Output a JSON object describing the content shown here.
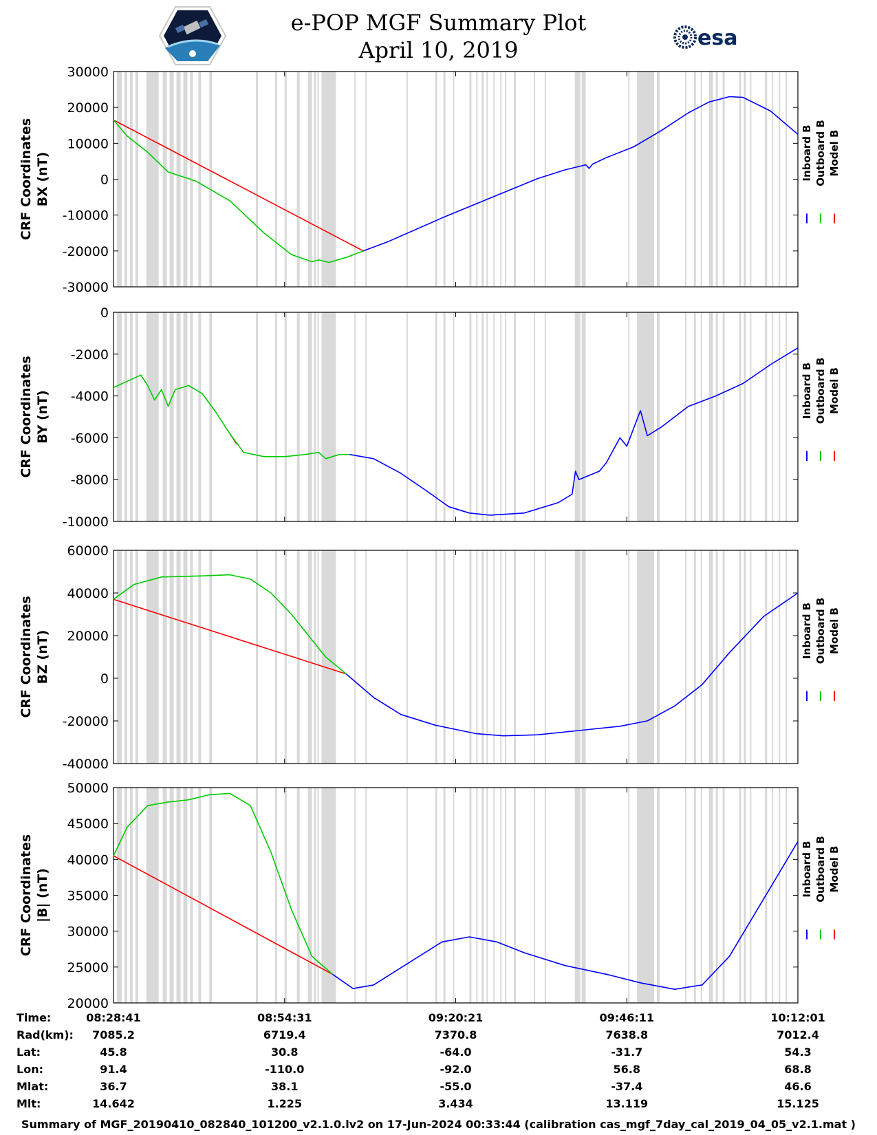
{
  "title_line1": "e-POP MGF Summary Plot",
  "title_line2": "April 10, 2019",
  "logos": {
    "left_icon": "cassiope-satellite-logo",
    "right_text": "esa"
  },
  "legend": [
    {
      "label": "Inboard B",
      "color": "#0000ff"
    },
    {
      "label": "Outboard B",
      "color": "#00cc00"
    },
    {
      "label": "Model B",
      "color": "#ff0000"
    }
  ],
  "chart_data": [
    {
      "type": "line",
      "ylabel1": "CRF Coordinates",
      "ylabel2": "BX (nT)",
      "ylim": [
        -30000,
        30000
      ],
      "yticks": [
        -30000,
        -20000,
        -10000,
        0,
        10000,
        20000,
        30000
      ],
      "ytick_labels": [
        "-30000",
        "-20000",
        "-10000",
        "0",
        "10000",
        "20000",
        "30000"
      ],
      "outboard": [
        [
          0,
          16500
        ],
        [
          0.02,
          12000
        ],
        [
          0.05,
          7500
        ],
        [
          0.08,
          2000
        ],
        [
          0.12,
          -500
        ],
        [
          0.17,
          -6000
        ],
        [
          0.22,
          -15000
        ],
        [
          0.26,
          -21000
        ],
        [
          0.29,
          -23000
        ],
        [
          0.3,
          -22500
        ],
        [
          0.315,
          -23200
        ],
        [
          0.34,
          -21800
        ],
        [
          0.365,
          -20000
        ]
      ],
      "inboard": [
        [
          0.365,
          -20000
        ],
        [
          0.4,
          -17500
        ],
        [
          0.48,
          -10800
        ],
        [
          0.56,
          -4500
        ],
        [
          0.62,
          200
        ],
        [
          0.66,
          2600
        ],
        [
          0.69,
          4000
        ],
        [
          0.695,
          3000
        ],
        [
          0.7,
          4200
        ],
        [
          0.72,
          6000
        ],
        [
          0.76,
          9000
        ],
        [
          0.8,
          13500
        ],
        [
          0.84,
          18500
        ],
        [
          0.87,
          21500
        ],
        [
          0.9,
          23000
        ],
        [
          0.92,
          22800
        ],
        [
          0.96,
          19000
        ],
        [
          1.0,
          12500
        ]
      ],
      "model": [
        [
          0,
          16500
        ],
        [
          0.365,
          -20000
        ]
      ]
    },
    {
      "type": "line",
      "ylabel1": "CRF Coordinates",
      "ylabel2": "BY (nT)",
      "ylim": [
        -10000,
        0
      ],
      "yticks": [
        -10000,
        -8000,
        -6000,
        -4000,
        -2000,
        0
      ],
      "ytick_labels": [
        "-10000",
        "-8000",
        "-6000",
        "-4000",
        "-2000",
        "0"
      ],
      "outboard": [
        [
          0,
          -3600
        ],
        [
          0.02,
          -3300
        ],
        [
          0.04,
          -3000
        ],
        [
          0.05,
          -3500
        ],
        [
          0.06,
          -4200
        ],
        [
          0.07,
          -3700
        ],
        [
          0.08,
          -4500
        ],
        [
          0.09,
          -3700
        ],
        [
          0.1,
          -3600
        ],
        [
          0.11,
          -3500
        ],
        [
          0.13,
          -3900
        ],
        [
          0.15,
          -4800
        ],
        [
          0.17,
          -5800
        ],
        [
          0.19,
          -6700
        ],
        [
          0.22,
          -6900
        ],
        [
          0.25,
          -6900
        ],
        [
          0.28,
          -6800
        ],
        [
          0.3,
          -6700
        ],
        [
          0.31,
          -7000
        ],
        [
          0.33,
          -6800
        ],
        [
          0.345,
          -6800
        ]
      ],
      "inboard": [
        [
          0.345,
          -6800
        ],
        [
          0.38,
          -7000
        ],
        [
          0.42,
          -7700
        ],
        [
          0.46,
          -8600
        ],
        [
          0.49,
          -9300
        ],
        [
          0.52,
          -9600
        ],
        [
          0.55,
          -9700
        ],
        [
          0.6,
          -9600
        ],
        [
          0.65,
          -9100
        ],
        [
          0.67,
          -8700
        ],
        [
          0.675,
          -7600
        ],
        [
          0.68,
          -8000
        ],
        [
          0.71,
          -7600
        ],
        [
          0.72,
          -7200
        ],
        [
          0.74,
          -6000
        ],
        [
          0.75,
          -6400
        ],
        [
          0.77,
          -4700
        ],
        [
          0.78,
          -5900
        ],
        [
          0.8,
          -5500
        ],
        [
          0.84,
          -4500
        ],
        [
          0.88,
          -4000
        ],
        [
          0.92,
          -3400
        ],
        [
          0.96,
          -2500
        ],
        [
          1.0,
          -1700
        ]
      ],
      "model": [
        [
          0.17,
          -5800
        ],
        [
          0.18,
          -6300
        ]
      ]
    },
    {
      "type": "line",
      "ylabel1": "CRF Coordinates",
      "ylabel2": "BZ (nT)",
      "ylim": [
        -40000,
        60000
      ],
      "yticks": [
        -40000,
        -20000,
        0,
        20000,
        40000,
        60000
      ],
      "ytick_labels": [
        "-40000",
        "-20000",
        "0",
        "20000",
        "40000",
        "60000"
      ],
      "outboard": [
        [
          0,
          37000
        ],
        [
          0.03,
          44000
        ],
        [
          0.07,
          47500
        ],
        [
          0.13,
          48000
        ],
        [
          0.17,
          48500
        ],
        [
          0.2,
          46500
        ],
        [
          0.23,
          40000
        ],
        [
          0.26,
          30000
        ],
        [
          0.29,
          18000
        ],
        [
          0.31,
          10000
        ],
        [
          0.34,
          2000
        ]
      ],
      "inboard": [
        [
          0.34,
          2000
        ],
        [
          0.38,
          -9000
        ],
        [
          0.42,
          -17000
        ],
        [
          0.47,
          -22000
        ],
        [
          0.53,
          -26000
        ],
        [
          0.57,
          -27000
        ],
        [
          0.62,
          -26500
        ],
        [
          0.68,
          -24500
        ],
        [
          0.74,
          -22500
        ],
        [
          0.78,
          -20000
        ],
        [
          0.82,
          -13000
        ],
        [
          0.86,
          -3000
        ],
        [
          0.9,
          12000
        ],
        [
          0.95,
          29000
        ],
        [
          1.0,
          40000
        ]
      ],
      "model": [
        [
          0,
          37000
        ],
        [
          0.34,
          2000
        ]
      ]
    },
    {
      "type": "line",
      "ylabel1": "CRF Coordinates",
      "ylabel2": "|B| (nT)",
      "ylim": [
        20000,
        50000
      ],
      "yticks": [
        20000,
        25000,
        30000,
        35000,
        40000,
        45000,
        50000
      ],
      "ytick_labels": [
        "20000",
        "25000",
        "30000",
        "35000",
        "40000",
        "45000",
        "50000"
      ],
      "outboard": [
        [
          0,
          40500
        ],
        [
          0.02,
          44500
        ],
        [
          0.05,
          47500
        ],
        [
          0.08,
          48000
        ],
        [
          0.11,
          48300
        ],
        [
          0.14,
          49000
        ],
        [
          0.17,
          49200
        ],
        [
          0.2,
          47500
        ],
        [
          0.23,
          41000
        ],
        [
          0.26,
          33000
        ],
        [
          0.29,
          26500
        ],
        [
          0.32,
          24000
        ]
      ],
      "inboard": [
        [
          0.32,
          24000
        ],
        [
          0.35,
          22000
        ],
        [
          0.38,
          22500
        ],
        [
          0.43,
          25500
        ],
        [
          0.48,
          28500
        ],
        [
          0.52,
          29200
        ],
        [
          0.56,
          28500
        ],
        [
          0.6,
          27000
        ],
        [
          0.66,
          25200
        ],
        [
          0.72,
          24000
        ],
        [
          0.77,
          22800
        ],
        [
          0.82,
          21900
        ],
        [
          0.86,
          22500
        ],
        [
          0.9,
          26500
        ],
        [
          0.95,
          34500
        ],
        [
          1.0,
          42500
        ]
      ],
      "model": [
        [
          0,
          40500
        ],
        [
          0.32,
          24000
        ]
      ]
    }
  ],
  "gray_bands": [
    [
      0.005,
      0.012
    ],
    [
      0.016,
      0.02
    ],
    [
      0.024,
      0.028
    ],
    [
      0.032,
      0.036
    ],
    [
      0.048,
      0.066
    ],
    [
      0.072,
      0.078
    ],
    [
      0.082,
      0.088
    ],
    [
      0.092,
      0.098
    ],
    [
      0.102,
      0.108
    ],
    [
      0.112,
      0.116
    ],
    [
      0.124,
      0.128
    ],
    [
      0.14,
      0.144
    ],
    [
      0.208,
      0.211
    ],
    [
      0.236,
      0.239
    ],
    [
      0.25,
      0.253
    ],
    [
      0.268,
      0.272
    ],
    [
      0.284,
      0.29
    ],
    [
      0.293,
      0.296
    ],
    [
      0.298,
      0.3
    ],
    [
      0.304,
      0.325
    ],
    [
      0.352,
      0.354
    ],
    [
      0.368,
      0.37
    ],
    [
      0.428,
      0.43
    ],
    [
      0.47,
      0.473
    ],
    [
      0.482,
      0.485
    ],
    [
      0.496,
      0.498
    ],
    [
      0.52,
      0.523
    ],
    [
      0.53,
      0.532
    ],
    [
      0.538,
      0.541
    ],
    [
      0.545,
      0.547
    ],
    [
      0.555,
      0.557
    ],
    [
      0.565,
      0.567
    ],
    [
      0.572,
      0.574
    ],
    [
      0.585,
      0.588
    ],
    [
      0.614,
      0.616
    ],
    [
      0.63,
      0.632
    ],
    [
      0.674,
      0.682
    ],
    [
      0.684,
      0.69
    ],
    [
      0.752,
      0.754
    ],
    [
      0.765,
      0.79
    ],
    [
      0.794,
      0.798
    ],
    [
      0.835,
      0.837
    ],
    [
      0.848,
      0.851
    ],
    [
      0.858,
      0.86
    ],
    [
      0.87,
      0.876
    ],
    [
      0.88,
      0.883
    ],
    [
      0.89,
      0.893
    ],
    [
      0.914,
      0.917
    ],
    [
      0.921,
      0.924
    ],
    [
      0.93,
      0.932
    ],
    [
      0.952,
      0.955
    ],
    [
      0.962,
      0.964
    ],
    [
      0.972,
      0.974
    ],
    [
      0.982,
      0.984
    ]
  ],
  "x_ticks": [
    0,
    0.25,
    0.5,
    0.75,
    1.0
  ],
  "info_table": {
    "rows": [
      {
        "label": "Time:",
        "values": [
          "08:28:41",
          "08:54:31",
          "09:20:21",
          "09:46:11",
          "10:12:01"
        ]
      },
      {
        "label": "Rad(km):",
        "values": [
          "7085.2",
          "6719.4",
          "7370.8",
          "7638.8",
          "7012.4"
        ]
      },
      {
        "label": "Lat:",
        "values": [
          "45.8",
          "30.8",
          "-64.0",
          "-31.7",
          "54.3"
        ]
      },
      {
        "label": "Lon:",
        "values": [
          "91.4",
          "-110.0",
          "-92.0",
          "56.8",
          "68.8"
        ]
      },
      {
        "label": "Mlat:",
        "values": [
          "36.7",
          "38.1",
          "-55.0",
          "-37.4",
          "46.6"
        ]
      },
      {
        "label": "Mlt:",
        "values": [
          "14.642",
          "1.225",
          "3.434",
          "13.119",
          "15.125"
        ]
      }
    ]
  },
  "footer": "Summary of MGF_20190410_082840_101200_v2.1.0.lv2 on 17-Jun-2024 00:33:44 (calibration cas_mgf_7day_cal_2019_04_05_v2.1.mat )"
}
